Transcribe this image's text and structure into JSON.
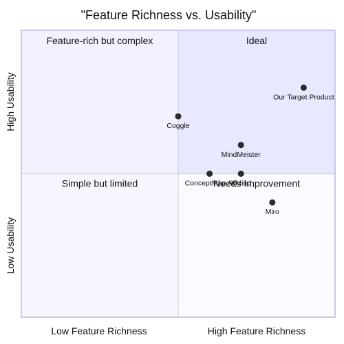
{
  "chart_data": {
    "type": "scatter",
    "title": "\"Feature Richness vs. Usability\"",
    "xlim": [
      0,
      1
    ],
    "ylim": [
      0,
      1
    ],
    "grid": false,
    "x_quadrant_labels": [
      "Low Feature Richness",
      "High Feature Richness"
    ],
    "y_quadrant_labels": [
      "Low Usability",
      "High Usability"
    ],
    "quadrants": {
      "top_left": {
        "label": "Feature-rich but complex",
        "color": "#f2f2ff"
      },
      "top_right": {
        "label": "Ideal",
        "color": "#e8e8ff"
      },
      "bottom_left": {
        "label": "Simple but limited",
        "color": "#f6f6ff"
      },
      "bottom_right": {
        "label": "Needs Improvement",
        "color": "#fbfbff"
      }
    },
    "points": [
      {
        "name": "Our Target Product",
        "x": 0.9,
        "y": 0.8
      },
      {
        "name": "Coggle",
        "x": 0.5,
        "y": 0.7
      },
      {
        "name": "MindMeister",
        "x": 0.7,
        "y": 0.6
      },
      {
        "name": "ConceptMap AI",
        "x": 0.6,
        "y": 0.5
      },
      {
        "name": "XMind",
        "x": 0.7,
        "y": 0.5
      },
      {
        "name": "Miro",
        "x": 0.8,
        "y": 0.4
      }
    ],
    "colors": {
      "point": "#2b2b2b",
      "border": "#c8c8f0",
      "divider": "#d0d0ea"
    }
  }
}
